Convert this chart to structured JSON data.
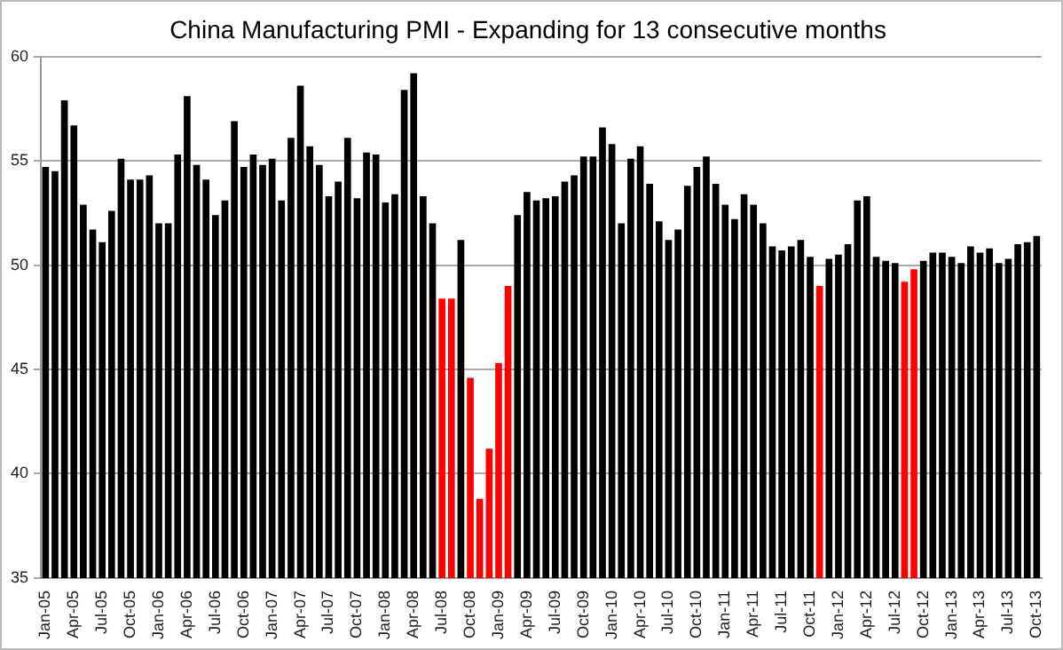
{
  "chart_data": {
    "type": "bar",
    "title": "China Manufacturing PMI - Expanding for 13 consecutive months",
    "categories": [
      "Jan-05",
      null,
      null,
      "Apr-05",
      null,
      null,
      "Jul-05",
      null,
      null,
      "Oct-05",
      null,
      null,
      "Jan-06",
      null,
      null,
      "Apr-06",
      null,
      null,
      "Jul-06",
      null,
      null,
      "Oct-06",
      null,
      null,
      "Jan-07",
      null,
      null,
      "Apr-07",
      null,
      null,
      "Jul-07",
      null,
      null,
      "Oct-07",
      null,
      null,
      "Jan-08",
      null,
      null,
      "Apr-08",
      null,
      null,
      "Jul-08",
      null,
      null,
      "Oct-08",
      null,
      null,
      "Jan-09",
      null,
      null,
      "Apr-09",
      null,
      null,
      "Jul-09",
      null,
      null,
      "Oct-09",
      null,
      null,
      "Jan-10",
      null,
      null,
      "Apr-10",
      null,
      null,
      "Jul-10",
      null,
      null,
      "Oct-10",
      null,
      null,
      "Jan-11",
      null,
      null,
      "Apr-11",
      null,
      null,
      "Jul-11",
      null,
      null,
      "Oct-11",
      null,
      null,
      "Jan-12",
      null,
      null,
      "Apr-12",
      null,
      null,
      "Jul-12",
      null,
      null,
      "Oct-12",
      null,
      null,
      "Jan-13",
      null,
      null,
      "Apr-13",
      null,
      null,
      "Jul-13",
      null,
      null,
      "Oct-13"
    ],
    "values": [
      54.7,
      54.5,
      57.9,
      56.7,
      52.9,
      51.7,
      51.1,
      52.6,
      55.1,
      54.1,
      54.1,
      54.3,
      52.0,
      52.0,
      55.3,
      58.1,
      54.8,
      54.1,
      52.4,
      53.1,
      56.9,
      54.7,
      55.3,
      54.8,
      55.1,
      53.1,
      56.1,
      58.6,
      55.7,
      54.8,
      53.3,
      54.0,
      56.1,
      53.2,
      55.4,
      55.3,
      53.0,
      53.4,
      58.4,
      59.2,
      53.3,
      52.0,
      48.4,
      48.4,
      51.2,
      44.6,
      38.8,
      41.2,
      45.3,
      49.0,
      52.4,
      53.5,
      53.1,
      53.2,
      53.3,
      54.0,
      54.3,
      55.2,
      55.2,
      56.6,
      55.8,
      52.0,
      55.1,
      55.7,
      53.9,
      52.1,
      51.2,
      51.7,
      53.8,
      54.7,
      55.2,
      53.9,
      52.9,
      52.2,
      53.4,
      52.9,
      52.0,
      50.9,
      50.7,
      50.9,
      51.2,
      50.4,
      49.0,
      50.3,
      50.5,
      51.0,
      53.1,
      53.3,
      50.4,
      50.2,
      50.1,
      49.2,
      49.8,
      50.2,
      50.6,
      50.6,
      50.4,
      50.1,
      50.9,
      50.6,
      50.8,
      50.1,
      50.3,
      51.0,
      51.1,
      51.4
    ],
    "colors": [
      "#000000",
      "#000000",
      "#000000",
      "#000000",
      "#000000",
      "#000000",
      "#000000",
      "#000000",
      "#000000",
      "#000000",
      "#000000",
      "#000000",
      "#000000",
      "#000000",
      "#000000",
      "#000000",
      "#000000",
      "#000000",
      "#000000",
      "#000000",
      "#000000",
      "#000000",
      "#000000",
      "#000000",
      "#000000",
      "#000000",
      "#000000",
      "#000000",
      "#000000",
      "#000000",
      "#000000",
      "#000000",
      "#000000",
      "#000000",
      "#000000",
      "#000000",
      "#000000",
      "#000000",
      "#000000",
      "#000000",
      "#000000",
      "#000000",
      "#ff0000",
      "#ff0000",
      "#000000",
      "#ff0000",
      "#ff0000",
      "#ff0000",
      "#ff0000",
      "#ff0000",
      "#000000",
      "#000000",
      "#000000",
      "#000000",
      "#000000",
      "#000000",
      "#000000",
      "#000000",
      "#000000",
      "#000000",
      "#000000",
      "#000000",
      "#000000",
      "#000000",
      "#000000",
      "#000000",
      "#000000",
      "#000000",
      "#000000",
      "#000000",
      "#000000",
      "#000000",
      "#000000",
      "#000000",
      "#000000",
      "#000000",
      "#000000",
      "#000000",
      "#000000",
      "#000000",
      "#000000",
      "#000000",
      "#ff0000",
      "#000000",
      "#000000",
      "#000000",
      "#000000",
      "#000000",
      "#000000",
      "#000000",
      "#000000",
      "#ff0000",
      "#ff0000",
      "#000000",
      "#000000",
      "#000000",
      "#000000",
      "#000000",
      "#000000",
      "#000000",
      "#000000",
      "#000000",
      "#000000",
      "#000000",
      "#000000",
      "#000000"
    ],
    "ylim": [
      35,
      60
    ],
    "yticks": [
      35,
      40,
      45,
      50,
      55,
      60
    ],
    "grid": "y"
  }
}
